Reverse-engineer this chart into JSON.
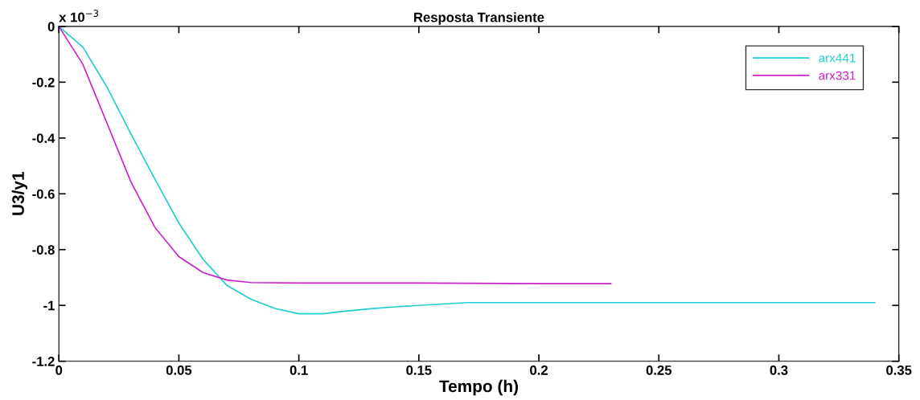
{
  "chart_data": {
    "type": "line",
    "title": "Resposta Transiente",
    "xlabel": "Tempo (h)",
    "ylabel": "U3/y1",
    "annotations": [
      "x 10$^{−3}$"
    ],
    "xlim": [
      0,
      0.35
    ],
    "ylim": [
      -1.2,
      0
    ],
    "xticks": [
      0,
      0.05,
      0.1,
      0.15,
      0.2,
      0.25,
      0.3,
      0.35
    ],
    "yticks": [
      -1.2,
      -1,
      -0.8,
      -0.6,
      -0.4,
      -0.2,
      0
    ],
    "grid": false,
    "legend": "top right",
    "series": [
      {
        "name": "arx441",
        "color": "#1fcfcf",
        "x": [
          0,
          0.01,
          0.02,
          0.03,
          0.04,
          0.05,
          0.06,
          0.07,
          0.08,
          0.09,
          0.1,
          0.11,
          0.12,
          0.13,
          0.14,
          0.15,
          0.16,
          0.17,
          0.2,
          0.25,
          0.3,
          0.34
        ],
        "values": [
          0,
          -0.074,
          -0.217,
          -0.385,
          -0.547,
          -0.705,
          -0.834,
          -0.928,
          -0.978,
          -1.011,
          -1.03,
          -1.03,
          -1.02,
          -1.012,
          -1.005,
          -1.0,
          -0.995,
          -0.99,
          -0.99,
          -0.99,
          -0.99,
          -0.99
        ]
      },
      {
        "name": "arx331",
        "color": "#cc22cc",
        "x": [
          0,
          0.01,
          0.02,
          0.03,
          0.04,
          0.05,
          0.06,
          0.07,
          0.08,
          0.1,
          0.15,
          0.2,
          0.23
        ],
        "values": [
          0,
          -0.136,
          -0.346,
          -0.557,
          -0.72,
          -0.825,
          -0.882,
          -0.909,
          -0.918,
          -0.92,
          -0.92,
          -0.922,
          -0.922
        ]
      }
    ]
  }
}
